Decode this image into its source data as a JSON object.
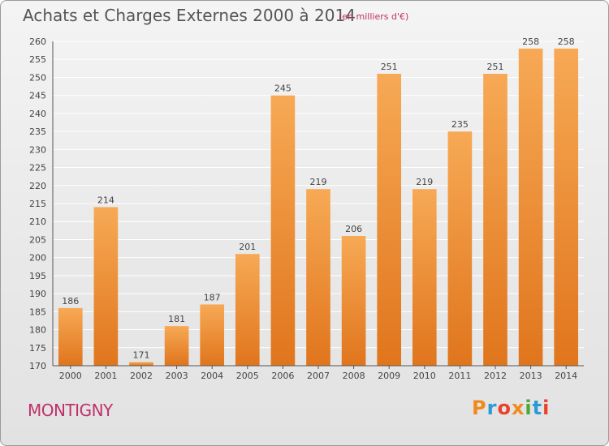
{
  "header": {
    "title": "Achats et Charges Externes 2000 à 2014",
    "subtitle": "(en milliers d'€)"
  },
  "footer": {
    "place": "MONTIGNY",
    "logo_text": "Proxiti",
    "logo_colors": [
      "#f08a1c",
      "#2a9bd6",
      "#e8412c",
      "#f08a1c",
      "#4aa83c",
      "#2a9bd6",
      "#e8412c"
    ]
  },
  "chart_data": {
    "type": "bar",
    "title": "Achats et Charges Externes 2000 à 2014",
    "subtitle": "(en milliers d'€)",
    "xlabel": "",
    "ylabel": "",
    "categories": [
      "2000",
      "2001",
      "2002",
      "2003",
      "2004",
      "2005",
      "2006",
      "2007",
      "2008",
      "2009",
      "2010",
      "2011",
      "2012",
      "2013",
      "2014"
    ],
    "values": [
      186,
      214,
      171,
      181,
      187,
      201,
      245,
      219,
      206,
      251,
      219,
      235,
      251,
      258,
      258
    ],
    "ylim": [
      170,
      260
    ],
    "yticks": [
      170,
      175,
      180,
      185,
      190,
      195,
      200,
      205,
      210,
      215,
      220,
      225,
      230,
      235,
      240,
      245,
      250,
      255,
      260
    ],
    "grid": true,
    "colors": {
      "bar_light": "#f7a955",
      "bar_dark": "#e0751c",
      "grid": "#ffffff",
      "axis": "#555555"
    }
  }
}
